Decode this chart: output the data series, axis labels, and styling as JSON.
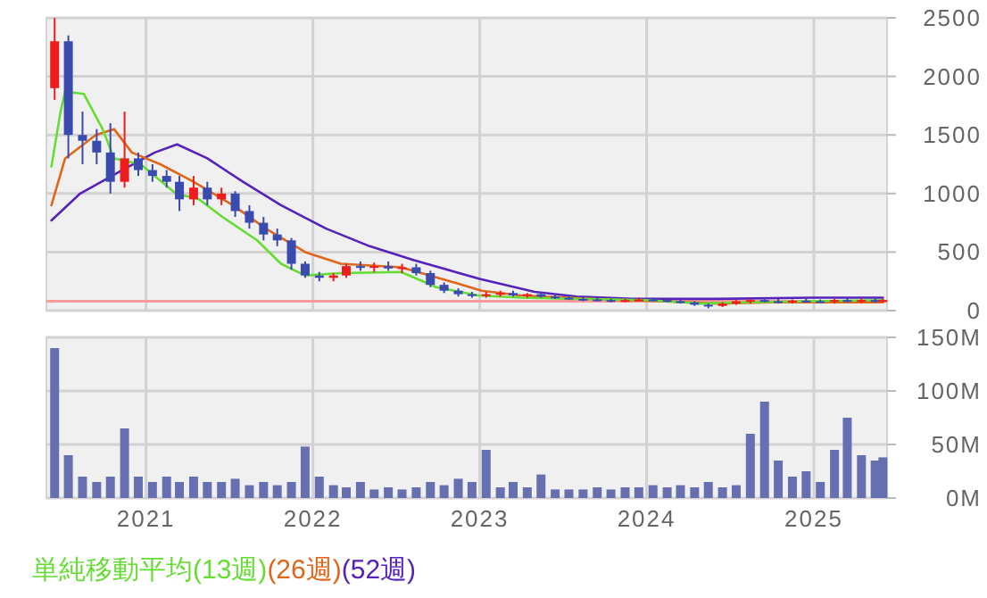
{
  "chart_data": [
    {
      "type": "candlestick",
      "xlim": [
        "2020-05-28",
        "2025-06-10"
      ],
      "xticks": [
        "2021",
        "2022",
        "2023",
        "2024",
        "2025"
      ],
      "ylim": [
        0,
        2500
      ],
      "yticks": [
        0,
        500,
        1000,
        1500,
        2000,
        2500
      ],
      "tick_labels": "y",
      "grid": true,
      "legend": "bottom",
      "x": [
        "2020-06-15",
        "2020-07-15",
        "2020-08-15",
        "2020-09-15",
        "2020-10-15",
        "2020-11-15",
        "2020-12-15",
        "2021-01-15",
        "2021-02-15",
        "2021-03-15",
        "2021-04-15",
        "2021-05-15",
        "2021-06-15",
        "2021-07-15",
        "2021-08-15",
        "2021-09-15",
        "2021-10-15",
        "2021-11-15",
        "2021-12-15",
        "2022-01-15",
        "2022-02-15",
        "2022-03-15",
        "2022-04-15",
        "2022-05-15",
        "2022-06-15",
        "2022-07-15",
        "2022-08-15",
        "2022-09-15",
        "2022-10-15",
        "2022-11-15",
        "2022-12-15",
        "2023-01-15",
        "2023-02-15",
        "2023-03-15",
        "2023-04-15",
        "2023-05-15",
        "2023-06-15",
        "2023-07-15",
        "2023-08-15",
        "2023-09-15",
        "2023-10-15",
        "2023-11-15",
        "2023-12-15",
        "2024-01-15",
        "2024-02-15",
        "2024-03-15",
        "2024-04-15",
        "2024-05-15",
        "2024-06-15",
        "2024-07-15",
        "2024-08-15",
        "2024-09-15",
        "2024-10-15",
        "2024-11-15",
        "2024-12-15",
        "2025-01-15",
        "2025-02-15",
        "2025-03-15",
        "2025-04-15",
        "2025-05-15",
        "2025-06-01"
      ],
      "ohlc": [
        [
          1900,
          2500,
          1800,
          2300
        ],
        [
          2300,
          2350,
          1300,
          1500
        ],
        [
          1500,
          1700,
          1250,
          1450
        ],
        [
          1450,
          1550,
          1250,
          1350
        ],
        [
          1350,
          1600,
          1000,
          1100
        ],
        [
          1100,
          1700,
          1050,
          1300
        ],
        [
          1300,
          1350,
          1150,
          1200
        ],
        [
          1200,
          1250,
          1100,
          1150
        ],
        [
          1150,
          1200,
          1050,
          1100
        ],
        [
          1100,
          1150,
          850,
          950
        ],
        [
          950,
          1150,
          900,
          1050
        ],
        [
          1050,
          1100,
          900,
          950
        ],
        [
          950,
          1050,
          900,
          1000
        ],
        [
          1000,
          1020,
          800,
          850
        ],
        [
          850,
          900,
          700,
          750
        ],
        [
          750,
          800,
          600,
          650
        ],
        [
          650,
          700,
          550,
          600
        ],
        [
          600,
          620,
          350,
          400
        ],
        [
          400,
          420,
          280,
          300
        ],
        [
          300,
          330,
          250,
          280
        ],
        [
          280,
          320,
          250,
          300
        ],
        [
          300,
          400,
          280,
          380
        ],
        [
          380,
          420,
          340,
          370
        ],
        [
          370,
          410,
          330,
          380
        ],
        [
          380,
          420,
          340,
          360
        ],
        [
          360,
          400,
          320,
          370
        ],
        [
          370,
          400,
          300,
          320
        ],
        [
          320,
          340,
          200,
          220
        ],
        [
          220,
          240,
          150,
          170
        ],
        [
          170,
          190,
          120,
          140
        ],
        [
          140,
          160,
          110,
          130
        ],
        [
          130,
          160,
          110,
          140
        ],
        [
          140,
          170,
          120,
          150
        ],
        [
          150,
          170,
          120,
          130
        ],
        [
          130,
          150,
          110,
          140
        ],
        [
          140,
          160,
          110,
          120
        ],
        [
          120,
          140,
          100,
          110
        ],
        [
          110,
          130,
          90,
          100
        ],
        [
          100,
          120,
          80,
          95
        ],
        [
          95,
          110,
          80,
          90
        ],
        [
          90,
          100,
          70,
          80
        ],
        [
          80,
          100,
          70,
          90
        ],
        [
          90,
          110,
          80,
          95
        ],
        [
          95,
          110,
          80,
          90
        ],
        [
          90,
          100,
          70,
          80
        ],
        [
          80,
          95,
          60,
          70
        ],
        [
          70,
          80,
          40,
          50
        ],
        [
          50,
          60,
          20,
          40
        ],
        [
          40,
          70,
          30,
          60
        ],
        [
          60,
          90,
          50,
          80
        ],
        [
          80,
          100,
          60,
          90
        ],
        [
          90,
          110,
          70,
          80
        ],
        [
          80,
          100,
          60,
          75
        ],
        [
          75,
          95,
          60,
          85
        ],
        [
          85,
          100,
          70,
          80
        ],
        [
          80,
          95,
          65,
          75
        ],
        [
          75,
          100,
          60,
          90
        ],
        [
          90,
          110,
          70,
          80
        ],
        [
          80,
          100,
          65,
          90
        ],
        [
          90,
          110,
          70,
          85
        ],
        [
          85,
          100,
          70,
          90
        ]
      ],
      "colors": [
        "#ee1c1c",
        "#3a4bb0",
        "#3a4bb0",
        "#3a4bb0",
        "#3a4bb0",
        "#ee1c1c",
        "#3a4bb0",
        "#3a4bb0",
        "#3a4bb0",
        "#3a4bb0",
        "#ee1c1c",
        "#3a4bb0",
        "#ee1c1c",
        "#3a4bb0",
        "#3a4bb0",
        "#3a4bb0",
        "#3a4bb0",
        "#3a4bb0",
        "#3a4bb0",
        "#3a4bb0",
        "#ee1c1c",
        "#ee1c1c",
        "#3a4bb0",
        "#ee1c1c",
        "#3a4bb0",
        "#ee1c1c",
        "#3a4bb0",
        "#3a4bb0",
        "#3a4bb0",
        "#3a4bb0",
        "#3a4bb0",
        "#ee1c1c",
        "#ee1c1c",
        "#3a4bb0",
        "#ee1c1c",
        "#3a4bb0",
        "#3a4bb0",
        "#3a4bb0",
        "#3a4bb0",
        "#3a4bb0",
        "#3a4bb0",
        "#ee1c1c",
        "#ee1c1c",
        "#3a4bb0",
        "#3a4bb0",
        "#3a4bb0",
        "#3a4bb0",
        "#3a4bb0",
        "#ee1c1c",
        "#ee1c1c",
        "#ee1c1c",
        "#3a4bb0",
        "#3a4bb0",
        "#ee1c1c",
        "#3a4bb0",
        "#3a4bb0",
        "#ee1c1c",
        "#3a4bb0",
        "#ee1c1c",
        "#3a4bb0",
        "#ee1c1c"
      ],
      "ref_lines": [
        {
          "axis": "y",
          "value": 80,
          "color": "#ff9a9a"
        }
      ],
      "series": [
        {
          "type": "line",
          "name": "単純移動平均(13週)",
          "color": "#66dd33",
          "x": [
            "2020-06-08",
            "2020-06-28",
            "2020-07-08",
            "2020-08-18",
            "2020-09-28",
            "2020-10-23",
            "2020-12-20",
            "2021-03-07",
            "2021-04-27",
            "2021-06-17",
            "2021-09-01",
            "2021-10-23",
            "2021-12-15",
            "2022-03-03",
            "2022-07-13",
            "2022-09-28",
            "2022-12-28",
            "2023-04-01",
            "2023-08-01",
            "2024-01-01",
            "2024-05-01",
            "2024-08-01",
            "2025-01-01",
            "2025-06-01"
          ],
          "values": [
            1230,
            1700,
            1870,
            1850,
            1550,
            1300,
            1250,
            1000,
            950,
            800,
            600,
            400,
            300,
            320,
            330,
            200,
            130,
            110,
            100,
            90,
            60,
            70,
            80,
            90
          ]
        },
        {
          "type": "line",
          "name": "(26週)",
          "color": "#e0661a",
          "x": [
            "2020-06-08",
            "2020-07-08",
            "2020-09-13",
            "2020-10-23",
            "2020-12-01",
            "2021-02-01",
            "2021-04-15",
            "2021-07-10",
            "2021-09-20",
            "2021-12-15",
            "2022-03-03",
            "2022-07-13",
            "2022-10-20",
            "2023-01-05",
            "2023-04-01",
            "2023-09-01",
            "2024-02-01",
            "2024-06-01",
            "2024-10-01",
            "2025-03-01",
            "2025-06-01"
          ],
          "values": [
            900,
            1300,
            1500,
            1550,
            1350,
            1250,
            1100,
            900,
            700,
            500,
            400,
            370,
            260,
            170,
            130,
            100,
            80,
            60,
            70,
            70,
            70
          ]
        },
        {
          "type": "line",
          "name": "(52週)",
          "color": "#5522bb",
          "x": [
            "2020-06-08",
            "2020-08-10",
            "2020-11-10",
            "2021-01-20",
            "2021-03-10",
            "2021-05-15",
            "2021-08-01",
            "2021-10-23",
            "2022-01-30",
            "2022-05-05",
            "2022-08-10",
            "2023-01-01",
            "2023-05-01",
            "2023-08-01",
            "2023-12-01",
            "2024-06-01",
            "2025-01-01",
            "2025-06-01"
          ],
          "values": [
            770,
            1000,
            1200,
            1350,
            1420,
            1300,
            1100,
            900,
            700,
            550,
            430,
            270,
            160,
            120,
            100,
            100,
            110,
            110
          ]
        }
      ]
    },
    {
      "type": "bar",
      "xlim": [
        "2020-05-28",
        "2025-06-10"
      ],
      "xticks": [
        "2021",
        "2022",
        "2023",
        "2024",
        "2025"
      ],
      "ylim": [
        0,
        150
      ],
      "yticks": [
        {
          "value": 0,
          "label": "0M"
        },
        {
          "value": 50,
          "label": "50M"
        },
        {
          "value": 100,
          "label": "100M"
        },
        {
          "value": 150,
          "label": "150M"
        }
      ],
      "grid": true,
      "color": "#6670b0",
      "x": [
        "2020-06-15",
        "2020-07-15",
        "2020-08-15",
        "2020-09-15",
        "2020-10-15",
        "2020-11-15",
        "2020-12-15",
        "2021-01-15",
        "2021-02-15",
        "2021-03-15",
        "2021-04-15",
        "2021-05-15",
        "2021-06-15",
        "2021-07-15",
        "2021-08-15",
        "2021-09-15",
        "2021-10-15",
        "2021-11-15",
        "2021-12-15",
        "2022-01-15",
        "2022-02-15",
        "2022-03-15",
        "2022-04-15",
        "2022-05-15",
        "2022-06-15",
        "2022-07-15",
        "2022-08-15",
        "2022-09-15",
        "2022-10-15",
        "2022-11-15",
        "2022-12-15",
        "2023-01-15",
        "2023-02-15",
        "2023-03-15",
        "2023-04-15",
        "2023-05-15",
        "2023-06-15",
        "2023-07-15",
        "2023-08-15",
        "2023-09-15",
        "2023-10-15",
        "2023-11-15",
        "2023-12-15",
        "2024-01-15",
        "2024-02-15",
        "2024-03-15",
        "2024-04-15",
        "2024-05-15",
        "2024-06-15",
        "2024-07-15",
        "2024-08-15",
        "2024-09-15",
        "2024-10-15",
        "2024-11-15",
        "2024-12-15",
        "2025-01-15",
        "2025-02-15",
        "2025-03-15",
        "2025-04-15",
        "2025-05-15",
        "2025-06-01"
      ],
      "values": [
        140,
        40,
        20,
        15,
        20,
        65,
        20,
        15,
        20,
        15,
        20,
        15,
        15,
        18,
        12,
        15,
        12,
        15,
        48,
        20,
        12,
        10,
        15,
        8,
        10,
        8,
        10,
        15,
        12,
        18,
        15,
        45,
        10,
        15,
        10,
        22,
        8,
        8,
        8,
        10,
        8,
        10,
        10,
        12,
        10,
        12,
        10,
        15,
        10,
        12,
        60,
        90,
        35,
        20,
        25,
        15,
        45,
        75,
        40,
        35,
        38
      ]
    }
  ]
}
